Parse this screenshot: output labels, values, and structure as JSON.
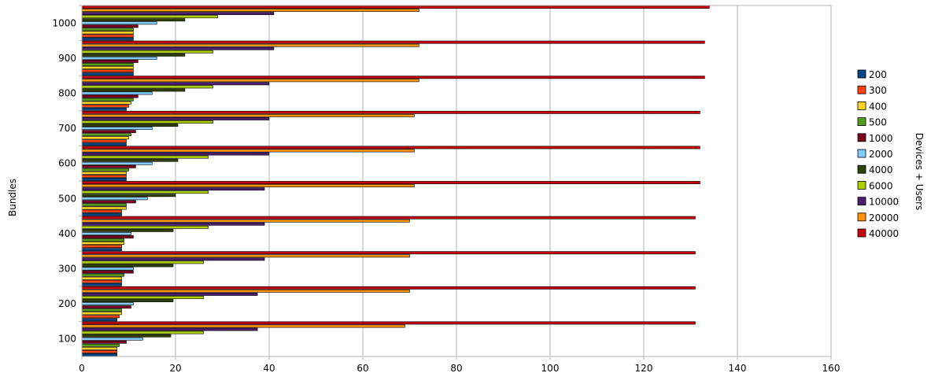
{
  "chart_data": {
    "type": "bar",
    "orientation": "horizontal",
    "title": "",
    "xlabel": "",
    "ylabel": "Bundles",
    "xlim": [
      0,
      160
    ],
    "x_ticks": [
      0,
      20,
      40,
      60,
      80,
      100,
      120,
      140,
      160
    ],
    "grid": "vertical",
    "legend": {
      "title": "Devices + Users",
      "placement": "right"
    },
    "categories": [
      "100",
      "200",
      "300",
      "400",
      "500",
      "600",
      "700",
      "800",
      "900",
      "1000"
    ],
    "series": [
      {
        "name": "200",
        "color": "#004586",
        "values": [
          7.5,
          7.5,
          8.5,
          8.5,
          8.5,
          9.5,
          9.5,
          9.5,
          11,
          11
        ]
      },
      {
        "name": "300",
        "color": "#ff420e",
        "values": [
          7.5,
          8,
          8.5,
          8.5,
          8.5,
          9.5,
          9.5,
          10,
          11,
          11
        ]
      },
      {
        "name": "400",
        "color": "#ffd320",
        "values": [
          7.5,
          8.5,
          8.5,
          9,
          9.5,
          9.5,
          10,
          10.5,
          11,
          11
        ]
      },
      {
        "name": "500",
        "color": "#579d1c",
        "values": [
          8,
          8.5,
          9,
          9,
          9.5,
          10,
          10.5,
          11,
          11,
          11
        ]
      },
      {
        "name": "1000",
        "color": "#7e0021",
        "values": [
          9.5,
          10.5,
          11,
          11,
          11.5,
          11.5,
          11.5,
          12,
          12,
          12
        ]
      },
      {
        "name": "2000",
        "color": "#83caff",
        "values": [
          13,
          11,
          11,
          10.5,
          14,
          15,
          15,
          15,
          16,
          16
        ]
      },
      {
        "name": "4000",
        "color": "#314004",
        "values": [
          19,
          19.5,
          19.5,
          19.5,
          20,
          20.5,
          20.5,
          22,
          22,
          22
        ]
      },
      {
        "name": "6000",
        "color": "#aecf00",
        "values": [
          26,
          26,
          26,
          27,
          27,
          27,
          28,
          28,
          28,
          29
        ]
      },
      {
        "name": "10000",
        "color": "#4b1f6f",
        "values": [
          37.5,
          37.5,
          39,
          39,
          39,
          40,
          40,
          40,
          41,
          41
        ]
      },
      {
        "name": "20000",
        "color": "#ff950e",
        "values": [
          69,
          70,
          70,
          70,
          71,
          71,
          71,
          72,
          72,
          72
        ]
      },
      {
        "name": "40000",
        "color": "#c5000b",
        "values": [
          131,
          131,
          131,
          131,
          132,
          132,
          132,
          133,
          133,
          134
        ]
      }
    ]
  }
}
